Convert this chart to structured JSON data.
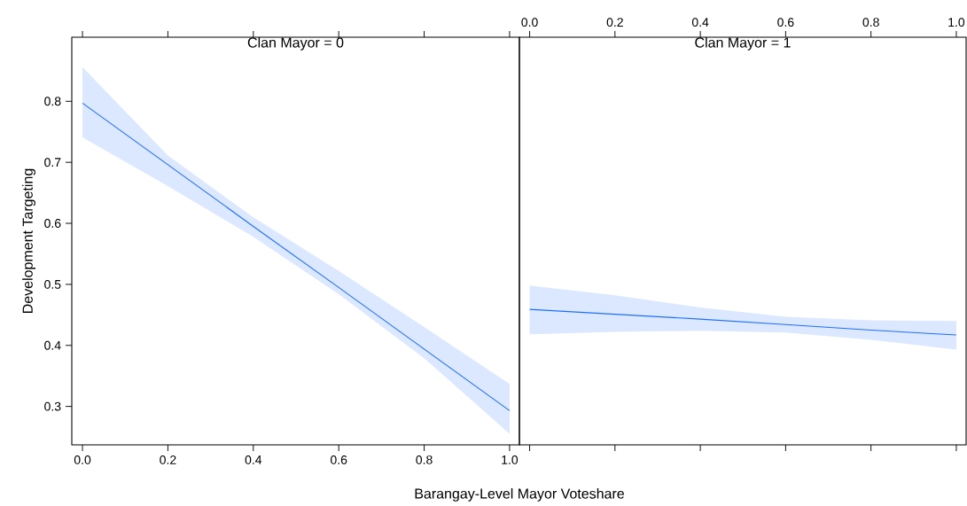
{
  "chart_data": [
    {
      "type": "line",
      "title": "Clan Mayor = 0",
      "xlabel": "Barangay-Level Mayor Voteshare",
      "ylabel": "Development Targeting",
      "x": [
        0,
        0.2,
        0.4,
        0.6,
        0.8,
        1
      ],
      "series": [
        {
          "color": "#1f6fff",
          "values": [
            0.797,
            0.696,
            0.595,
            0.495,
            0.394,
            0.293
          ],
          "lower": [
            0.741,
            0.661,
            0.578,
            0.484,
            0.379,
            0.255
          ],
          "upper": [
            0.856,
            0.711,
            0.61,
            0.522,
            0.43,
            0.337
          ]
        }
      ],
      "xlim": [
        -0.025,
        1.023
      ],
      "ylim": [
        0.237,
        0.905
      ],
      "xticks": [
        {
          "value": 0,
          "label": "0.0"
        },
        {
          "value": 0.2,
          "label": "0.2"
        },
        {
          "value": 0.4,
          "label": "0.4"
        },
        {
          "value": 0.6,
          "label": "0.6"
        },
        {
          "value": 0.8,
          "label": "0.8"
        },
        {
          "value": 1,
          "label": "1.0"
        }
      ],
      "yticks": [
        {
          "value": 0.3,
          "label": "0.3"
        },
        {
          "value": 0.4,
          "label": "0.4"
        },
        {
          "value": 0.5,
          "label": "0.5"
        },
        {
          "value": 0.6,
          "label": "0.6"
        },
        {
          "value": 0.7,
          "label": "0.7"
        },
        {
          "value": 0.8,
          "label": "0.8"
        }
      ]
    },
    {
      "type": "line",
      "title": "Clan Mayor = 1",
      "x": [
        0,
        0.2,
        0.4,
        0.6,
        0.8,
        1
      ],
      "series": [
        {
          "color": "#1f6fff",
          "values": [
            0.459,
            0.451,
            0.443,
            0.434,
            0.425,
            0.417
          ],
          "lower": [
            0.418,
            0.422,
            0.424,
            0.421,
            0.409,
            0.393
          ],
          "upper": [
            0.498,
            0.482,
            0.462,
            0.447,
            0.441,
            0.44
          ]
        }
      ],
      "xlim": [
        -0.024,
        1.023
      ],
      "ylim": [
        0.237,
        0.905
      ],
      "tick_labels": "x",
      "xticks": [
        {
          "value": 0,
          "label": "0.0"
        },
        {
          "value": 0.2,
          "label": "0.2"
        },
        {
          "value": 0.4,
          "label": "0.4"
        },
        {
          "value": 0.6,
          "label": "0.6"
        },
        {
          "value": 0.8,
          "label": "0.8"
        },
        {
          "value": 1,
          "label": "1.0"
        }
      ]
    }
  ]
}
